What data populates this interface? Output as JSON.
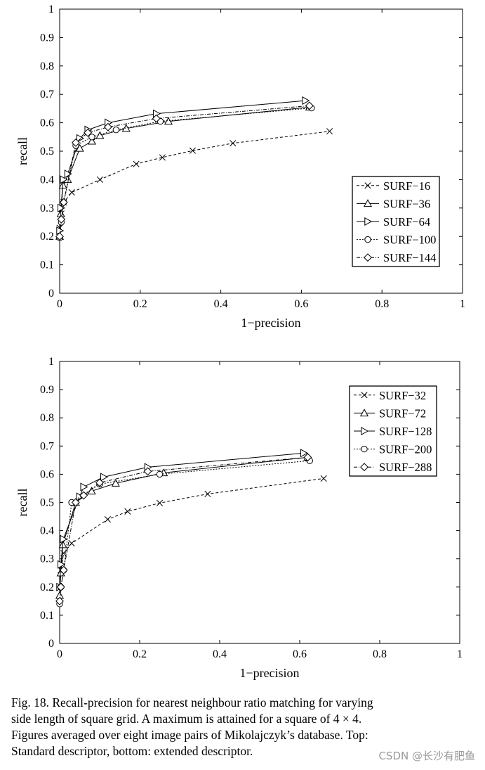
{
  "chart_data": [
    {
      "id": "top",
      "type": "line",
      "title": "",
      "xlabel": "1−precision",
      "ylabel": "recall",
      "xlim": [
        0,
        1
      ],
      "ylim": [
        0,
        1
      ],
      "xticks": [
        0,
        0.2,
        0.4,
        0.6,
        0.8,
        1
      ],
      "xtick_labels": [
        "0",
        "0.2",
        "0.4",
        "0.6",
        "0.8",
        "1"
      ],
      "yticks": [
        0,
        0.1,
        0.2,
        0.3,
        0.4,
        0.5,
        0.6,
        0.7,
        0.8,
        0.9,
        1
      ],
      "ytick_labels": [
        "0",
        "0.1",
        "0.2",
        "0.3",
        "0.4",
        "0.5",
        "0.6",
        "0.7",
        "0.8",
        "0.9",
        "1"
      ],
      "grid": false,
      "legend_position": "center-right",
      "series": [
        {
          "name": "SURF−16",
          "marker": "x",
          "dash": "4,3",
          "x": [
            0.0,
            0.004,
            0.01,
            0.03,
            0.1,
            0.19,
            0.255,
            0.33,
            0.43,
            0.67
          ],
          "y": [
            0.23,
            0.28,
            0.32,
            0.355,
            0.4,
            0.455,
            0.478,
            0.502,
            0.528,
            0.57
          ]
        },
        {
          "name": "SURF−36",
          "marker": "triangle-up",
          "dash": "",
          "x": [
            0.0,
            0.003,
            0.008,
            0.02,
            0.05,
            0.08,
            0.1,
            0.165,
            0.27,
            0.62
          ],
          "y": [
            0.2,
            0.28,
            0.38,
            0.4,
            0.51,
            0.535,
            0.555,
            0.58,
            0.605,
            0.655
          ]
        },
        {
          "name": "SURF−64",
          "marker": "triangle-right",
          "dash": "",
          "x": [
            0.0,
            0.003,
            0.009,
            0.02,
            0.05,
            0.07,
            0.12,
            0.24,
            0.61
          ],
          "y": [
            0.22,
            0.3,
            0.4,
            0.42,
            0.545,
            0.575,
            0.6,
            0.632,
            0.678
          ]
        },
        {
          "name": "SURF−100",
          "marker": "circle",
          "dash": "2,2",
          "x": [
            0.0,
            0.004,
            0.01,
            0.04,
            0.08,
            0.14,
            0.25,
            0.625
          ],
          "y": [
            0.195,
            0.25,
            0.32,
            0.52,
            0.55,
            0.575,
            0.605,
            0.652
          ]
        },
        {
          "name": "SURF−144",
          "marker": "diamond",
          "dash": "5,2,1,2",
          "x": [
            0.0,
            0.004,
            0.01,
            0.04,
            0.07,
            0.12,
            0.24,
            0.62
          ],
          "y": [
            0.2,
            0.26,
            0.32,
            0.53,
            0.565,
            0.585,
            0.615,
            0.66
          ]
        }
      ]
    },
    {
      "id": "bottom",
      "type": "line",
      "title": "",
      "xlabel": "1−precision",
      "ylabel": "recall",
      "xlim": [
        0,
        1
      ],
      "ylim": [
        0,
        1
      ],
      "xticks": [
        0,
        0.2,
        0.4,
        0.6,
        0.8,
        1
      ],
      "xtick_labels": [
        "0",
        "0.2",
        "0.4",
        "0.6",
        "0.8",
        "1"
      ],
      "yticks": [
        0,
        0.1,
        0.2,
        0.3,
        0.4,
        0.5,
        0.6,
        0.7,
        0.8,
        0.9,
        1
      ],
      "ytick_labels": [
        "0",
        "0.1",
        "0.2",
        "0.3",
        "0.4",
        "0.5",
        "0.6",
        "0.7",
        "0.8",
        "0.9",
        "1"
      ],
      "grid": false,
      "legend_position": "top-right",
      "series": [
        {
          "name": "SURF−32",
          "marker": "x",
          "dash": "4,3",
          "x": [
            0.0,
            0.003,
            0.01,
            0.03,
            0.12,
            0.17,
            0.25,
            0.37,
            0.66
          ],
          "y": [
            0.2,
            0.26,
            0.32,
            0.355,
            0.44,
            0.468,
            0.498,
            0.53,
            0.585
          ]
        },
        {
          "name": "SURF−72",
          "marker": "triangle-up",
          "dash": "",
          "x": [
            0.0,
            0.003,
            0.008,
            0.04,
            0.08,
            0.14,
            0.26,
            0.62
          ],
          "y": [
            0.17,
            0.25,
            0.35,
            0.5,
            0.54,
            0.568,
            0.605,
            0.66
          ]
        },
        {
          "name": "SURF−128",
          "marker": "triangle-right",
          "dash": "",
          "x": [
            0.0,
            0.003,
            0.009,
            0.05,
            0.06,
            0.11,
            0.22,
            0.61
          ],
          "y": [
            0.2,
            0.28,
            0.37,
            0.52,
            0.555,
            0.59,
            0.625,
            0.675
          ]
        },
        {
          "name": "SURF−200",
          "marker": "circle",
          "dash": "2,2",
          "x": [
            0.0,
            0.003,
            0.01,
            0.03,
            0.1,
            0.25,
            0.625
          ],
          "y": [
            0.14,
            0.2,
            0.26,
            0.5,
            0.565,
            0.6,
            0.648
          ]
        },
        {
          "name": "SURF−288",
          "marker": "diamond",
          "dash": "5,2,1,2",
          "x": [
            0.0,
            0.003,
            0.01,
            0.04,
            0.06,
            0.1,
            0.22,
            0.62
          ],
          "y": [
            0.15,
            0.2,
            0.26,
            0.5,
            0.525,
            0.57,
            0.61,
            0.66
          ]
        }
      ]
    }
  ],
  "caption": {
    "lines": [
      "Fig. 18.  Recall-precision for nearest neighbour ratio matching for varying",
      "side length of square grid. A maximum is attained for a square of 4 × 4.",
      "Figures averaged over eight image pairs of Mikolajczyk’s database. Top:",
      "Standard descriptor, bottom: extended descriptor."
    ]
  },
  "watermark": "CSDN @长沙有肥鱼"
}
